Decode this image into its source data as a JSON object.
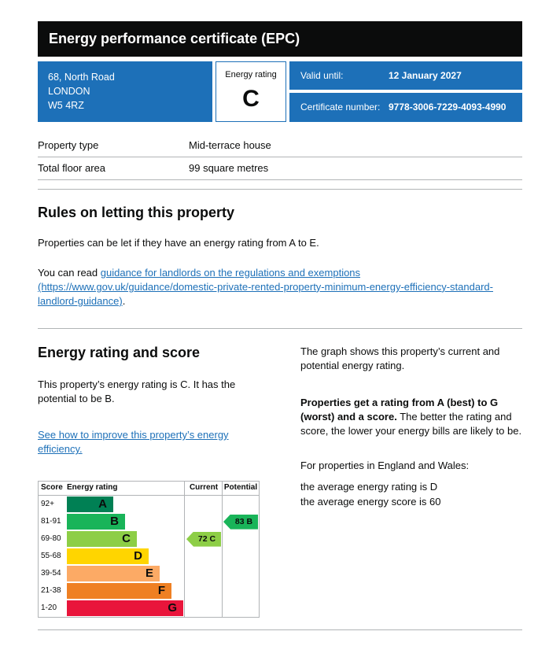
{
  "page_title": "Energy performance certificate (EPC)",
  "summary": {
    "address_lines": [
      "68, North Road",
      "LONDON",
      "W5 4RZ"
    ],
    "rating_box": {
      "label": "Energy rating",
      "value": "C"
    },
    "valid_until": {
      "label": "Valid until:",
      "value": "12 January 2027"
    },
    "certificate": {
      "label": "Certificate number:",
      "value": "9778-3006-7229-4093-4990"
    }
  },
  "facts": [
    {
      "label": "Property type",
      "value": "Mid-terrace house"
    },
    {
      "label": "Total floor area",
      "value": "99 square metres"
    }
  ],
  "rules": {
    "heading": "Rules on letting this property",
    "paragraph": "Properties can be let if they have an energy rating from A to E.",
    "link_prefix": "You can read ",
    "link_text": "guidance for landlords on the regulations and exemptions (https://www.gov.uk/guidance/domestic-private-rented-property-minimum-energy-efficiency-standard-landlord-guidance)",
    "link_suffix": "."
  },
  "rating_section": {
    "heading": "Energy rating and score",
    "intro": "This property’s energy rating is C. It has the potential to be B.",
    "improve_link": "See how to improve this property’s energy efficiency.",
    "graph_caption": "The graph shows this property’s current and potential energy rating.",
    "explain_bold": "Properties get a rating from A (best) to G (worst) and a score.",
    "explain_rest": " The better the rating and score, the lower your energy bills are likely to be.",
    "averages_intro": "For properties in England and Wales:",
    "average_rating": "the average energy rating is D",
    "average_score": "the average energy score is 60"
  },
  "chart_data": {
    "type": "bar",
    "title": "Energy rating and score",
    "columns": {
      "score": "Score",
      "rating": "Energy rating",
      "current": "Current",
      "potential": "Potential"
    },
    "bands": [
      {
        "score_range": "92+",
        "letter": "A",
        "color": "#008054",
        "length_pct": 40
      },
      {
        "score_range": "81-91",
        "letter": "B",
        "color": "#19b459",
        "length_pct": 50
      },
      {
        "score_range": "69-80",
        "letter": "C",
        "color": "#8dce46",
        "length_pct": 60
      },
      {
        "score_range": "55-68",
        "letter": "D",
        "color": "#ffd500",
        "length_pct": 70
      },
      {
        "score_range": "39-54",
        "letter": "E",
        "color": "#fcaa65",
        "length_pct": 80
      },
      {
        "score_range": "21-38",
        "letter": "F",
        "color": "#ef8023",
        "length_pct": 90
      },
      {
        "score_range": "1-20",
        "letter": "G",
        "color": "#e9153b",
        "length_pct": 100
      }
    ],
    "current": {
      "score": 72,
      "letter": "C",
      "band_index": 2,
      "color": "#8dce46"
    },
    "potential": {
      "score": 83,
      "letter": "B",
      "band_index": 1,
      "color": "#19b459"
    }
  },
  "colors": {
    "brand_blue": "#1d70b8",
    "text_black": "#0b0c0c",
    "border_gray": "#b1b4b6"
  }
}
